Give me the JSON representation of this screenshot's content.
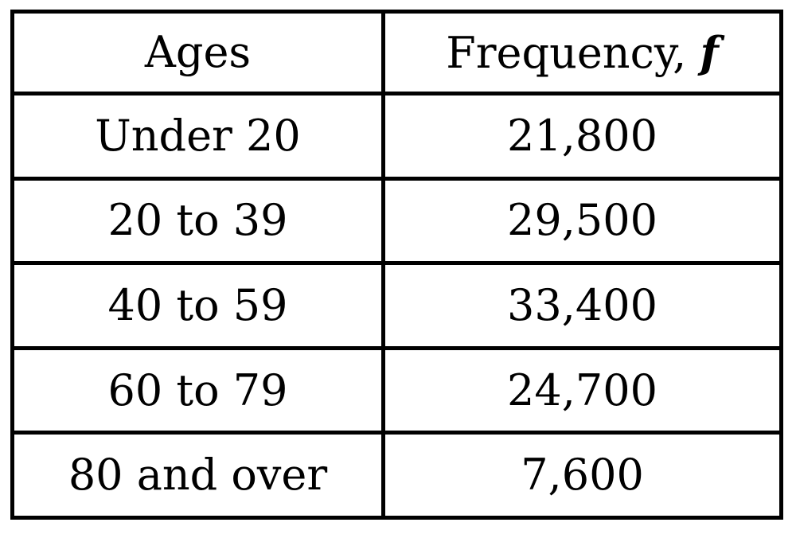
{
  "chart_data": {
    "type": "table",
    "columns": [
      "Ages",
      "Frequency,"
    ],
    "frequency_symbol": "f",
    "rows": [
      {
        "ages": "Under 20",
        "frequency": "21,800"
      },
      {
        "ages": "20 to 39",
        "frequency": "29,500"
      },
      {
        "ages": "40 to 59",
        "frequency": "33,400"
      },
      {
        "ages": "60 to 79",
        "frequency": "24,700"
      },
      {
        "ages": "80 and over",
        "frequency": "7,600"
      }
    ],
    "values": [
      21800,
      29500,
      33400,
      24700,
      7600
    ]
  }
}
